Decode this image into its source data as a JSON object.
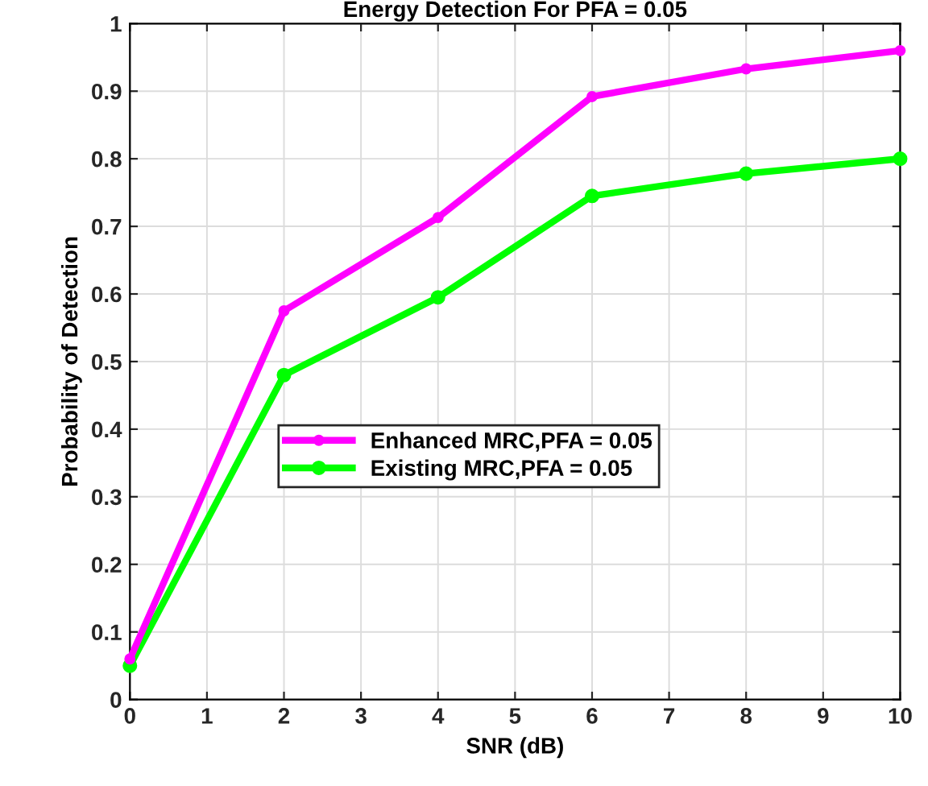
{
  "chart_data": {
    "type": "line",
    "title": "Energy Detection For PFA = 0.05",
    "xlabel": "SNR (dB)",
    "ylabel": "Probability of Detection",
    "x": [
      0,
      2,
      4,
      6,
      8,
      10
    ],
    "series": [
      {
        "name": "Enhanced MRC,PFA = 0.05",
        "color": "#ff00ff",
        "values": [
          0.06,
          0.575,
          0.713,
          0.892,
          0.933,
          0.96
        ]
      },
      {
        "name": "Existing MRC,PFA = 0.05",
        "color": "#00ff00",
        "values": [
          0.05,
          0.48,
          0.595,
          0.745,
          0.778,
          0.8
        ]
      }
    ],
    "xlim": [
      0,
      10
    ],
    "xticks": [
      0,
      1,
      2,
      3,
      4,
      5,
      6,
      7,
      8,
      9,
      10
    ],
    "ylim": [
      0,
      1
    ],
    "yticks": [
      0,
      0.1,
      0.2,
      0.3,
      0.4,
      0.5,
      0.6,
      0.7,
      0.8,
      0.9,
      1
    ],
    "grid": true,
    "legend": "center",
    "marker": "circle",
    "line_style": "solid"
  }
}
